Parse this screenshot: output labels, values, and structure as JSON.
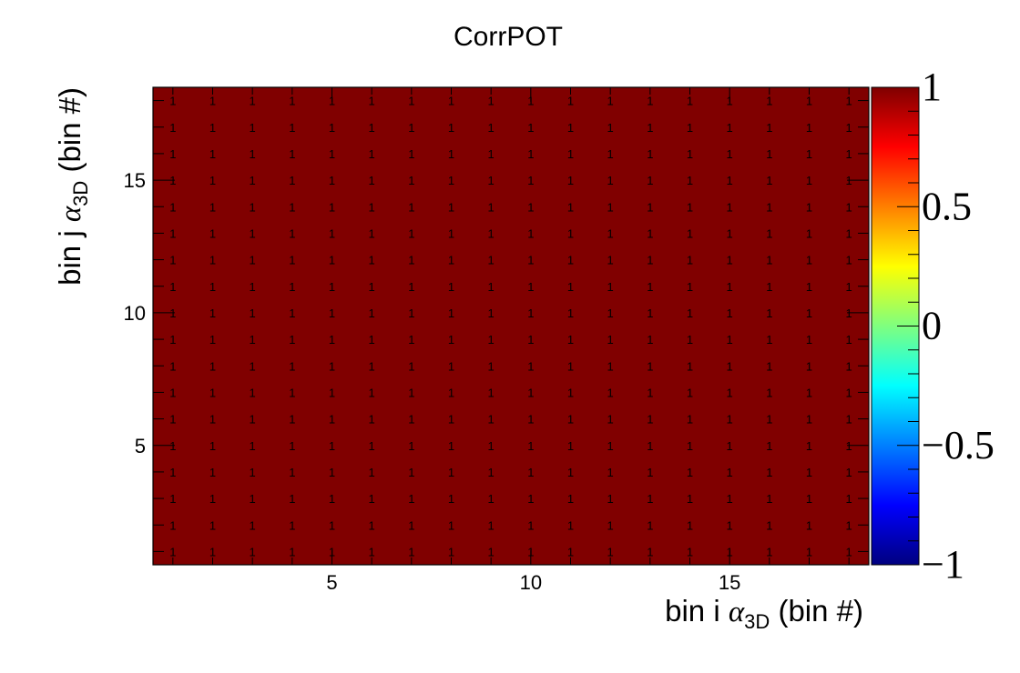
{
  "chart_data": {
    "type": "heatmap",
    "title": "CorrPOT",
    "xlabel": {
      "pre": "bin i ",
      "greek": "α",
      "sub": "3D",
      "post": " (bin #)"
    },
    "ylabel": {
      "pre": "bin j ",
      "greek": "α",
      "sub": "3D",
      "post": " (bin #)"
    },
    "x_bins": 18,
    "y_bins": 18,
    "xlim": [
      0.5,
      18.5
    ],
    "ylim": [
      0.5,
      18.5
    ],
    "x_ticks": [
      5,
      10,
      15
    ],
    "y_ticks": [
      5,
      10,
      15
    ],
    "z_range": [
      -1,
      1
    ],
    "z_ticks": [
      -1,
      -0.5,
      0,
      0.5,
      1
    ],
    "z_tick_labels": [
      "−1",
      "−0.5",
      "0",
      "0.5",
      "1"
    ],
    "value_all_cells": 1,
    "cell_text": "1",
    "cell_color": "#800000",
    "colormap": [
      "#00007f",
      "#0000ff",
      "#007fff",
      "#00ffff",
      "#7fff7f",
      "#ffff00",
      "#ff7f00",
      "#ff0000",
      "#7f0000"
    ],
    "grid": false,
    "legend": "none"
  }
}
